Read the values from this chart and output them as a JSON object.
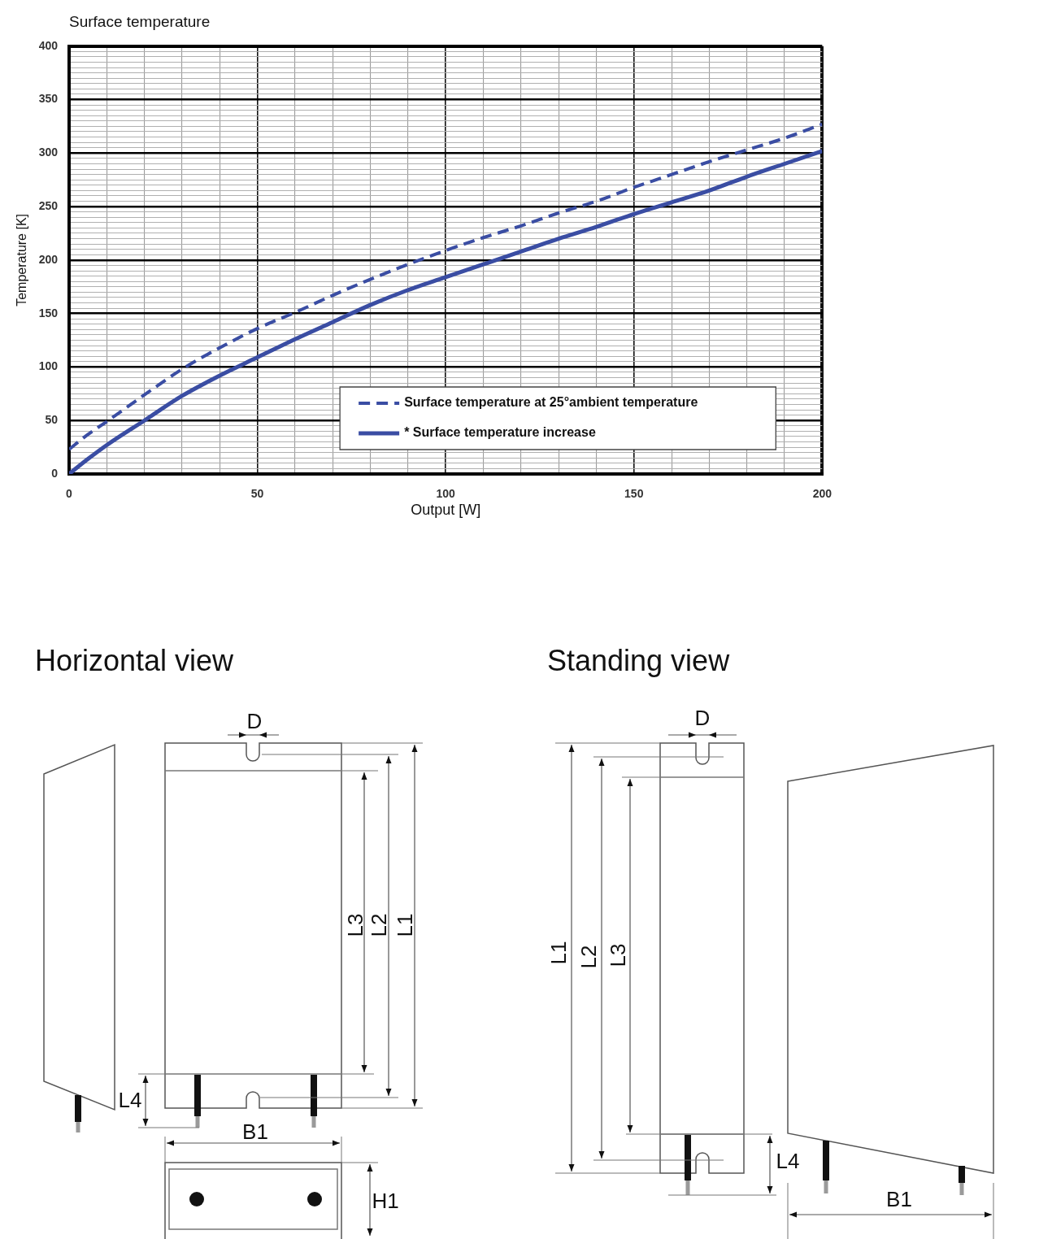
{
  "chart_data": {
    "type": "line",
    "title": "Surface temperature",
    "xlabel": "Output [W]",
    "ylabel": "Temperature [K]",
    "x": [
      0,
      5,
      10,
      20,
      30,
      40,
      50,
      60,
      70,
      80,
      90,
      100,
      110,
      120,
      130,
      140,
      150,
      160,
      170,
      180,
      190,
      200
    ],
    "series": [
      {
        "name": "Surface temperature at 25°ambient temperature",
        "color": "#3a4da3",
        "line_style": "dashed",
        "values": [
          23,
          37,
          49,
          74,
          98,
          118,
          136,
          151,
          167,
          182,
          196,
          209,
          221,
          232,
          244,
          255,
          268,
          280,
          292,
          303,
          314,
          327
        ]
      },
      {
        "name": "* Surface temperature increase",
        "color": "#3a4da3",
        "line_style": "solid",
        "values": [
          0,
          14,
          27,
          50,
          73,
          92,
          109,
          126,
          142,
          158,
          172,
          184,
          196,
          208,
          220,
          231,
          243,
          254,
          265,
          278,
          290,
          302
        ]
      }
    ],
    "xlim": [
      0,
      200
    ],
    "ylim": [
      0,
      400
    ],
    "xticks": [
      0,
      {
        "value": 10,
        "label": null
      },
      {
        "value": 20,
        "label": null
      },
      {
        "value": 30,
        "label": null
      },
      {
        "value": 40,
        "label": null
      },
      50,
      {
        "value": 60,
        "label": null
      },
      {
        "value": 70,
        "label": null
      },
      {
        "value": 80,
        "label": null
      },
      {
        "value": 90,
        "label": null
      },
      100,
      {
        "value": 110,
        "label": null
      },
      {
        "value": 120,
        "label": null
      },
      {
        "value": 130,
        "label": null
      },
      {
        "value": 140,
        "label": null
      },
      150,
      {
        "value": 160,
        "label": null
      },
      {
        "value": 170,
        "label": null
      },
      {
        "value": 180,
        "label": null
      },
      {
        "value": 190,
        "label": null
      },
      200
    ],
    "yticks": [
      0,
      {
        "value": 5,
        "label": null
      },
      {
        "value": 10,
        "label": null
      },
      {
        "value": 15,
        "label": null
      },
      {
        "value": 20,
        "label": null
      },
      {
        "value": 25,
        "label": null
      },
      {
        "value": 30,
        "label": null
      },
      {
        "value": 35,
        "label": null
      },
      {
        "value": 40,
        "label": null
      },
      {
        "value": 45,
        "label": null
      },
      50,
      {
        "value": 55,
        "label": null
      },
      {
        "value": 60,
        "label": null
      },
      {
        "value": 65,
        "label": null
      },
      {
        "value": 70,
        "label": null
      },
      {
        "value": 75,
        "label": null
      },
      {
        "value": 80,
        "label": null
      },
      {
        "value": 85,
        "label": null
      },
      {
        "value": 90,
        "label": null
      },
      {
        "value": 95,
        "label": null
      },
      100,
      {
        "value": 105,
        "label": null
      },
      {
        "value": 110,
        "label": null
      },
      {
        "value": 115,
        "label": null
      },
      {
        "value": 120,
        "label": null
      },
      {
        "value": 125,
        "label": null
      },
      {
        "value": 130,
        "label": null
      },
      {
        "value": 135,
        "label": null
      },
      {
        "value": 140,
        "label": null
      },
      {
        "value": 145,
        "label": null
      },
      150,
      {
        "value": 155,
        "label": null
      },
      {
        "value": 160,
        "label": null
      },
      {
        "value": 165,
        "label": null
      },
      {
        "value": 170,
        "label": null
      },
      {
        "value": 175,
        "label": null
      },
      {
        "value": 180,
        "label": null
      },
      {
        "value": 185,
        "label": null
      },
      {
        "value": 190,
        "label": null
      },
      {
        "value": 195,
        "label": null
      },
      200,
      {
        "value": 205,
        "label": null
      },
      {
        "value": 210,
        "label": null
      },
      {
        "value": 215,
        "label": null
      },
      {
        "value": 220,
        "label": null
      },
      {
        "value": 225,
        "label": null
      },
      {
        "value": 230,
        "label": null
      },
      {
        "value": 235,
        "label": null
      },
      {
        "value": 240,
        "label": null
      },
      {
        "value": 245,
        "label": null
      },
      250,
      {
        "value": 255,
        "label": null
      },
      {
        "value": 260,
        "label": null
      },
      {
        "value": 265,
        "label": null
      },
      {
        "value": 270,
        "label": null
      },
      {
        "value": 275,
        "label": null
      },
      {
        "value": 280,
        "label": null
      },
      {
        "value": 285,
        "label": null
      },
      {
        "value": 290,
        "label": null
      },
      {
        "value": 295,
        "label": null
      },
      300,
      {
        "value": 305,
        "label": null
      },
      {
        "value": 310,
        "label": null
      },
      {
        "value": 315,
        "label": null
      },
      {
        "value": 320,
        "label": null
      },
      {
        "value": 325,
        "label": null
      },
      {
        "value": 330,
        "label": null
      },
      {
        "value": 335,
        "label": null
      },
      {
        "value": 340,
        "label": null
      },
      {
        "value": 345,
        "label": null
      },
      350,
      {
        "value": 355,
        "label": null
      },
      {
        "value": 360,
        "label": null
      },
      {
        "value": 365,
        "label": null
      },
      {
        "value": 370,
        "label": null
      },
      {
        "value": 375,
        "label": null
      },
      {
        "value": 380,
        "label": null
      },
      {
        "value": 385,
        "label": null
      },
      {
        "value": 390,
        "label": null
      },
      {
        "value": 395,
        "label": null
      },
      400
    ],
    "grid": true,
    "legend": "bottom right",
    "annotations": [
      "Horizontal view",
      "D",
      "L3",
      "L2",
      "L1",
      "L4",
      "B1",
      "H1",
      "Standing view",
      "D",
      "L1",
      "L2",
      "L3",
      "L4",
      "B1"
    ]
  }
}
